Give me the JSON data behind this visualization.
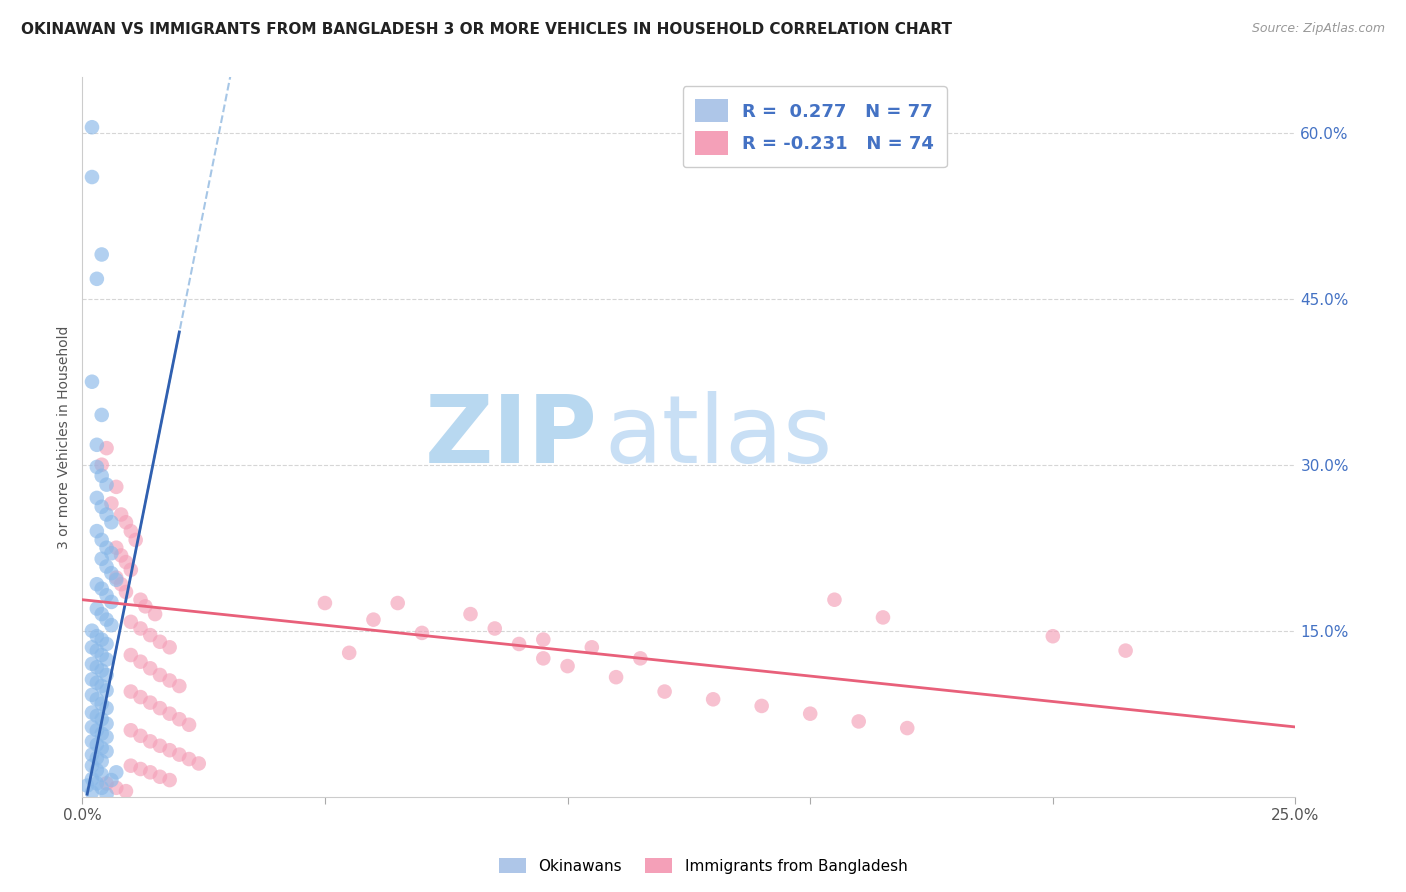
{
  "title": "OKINAWAN VS IMMIGRANTS FROM BANGLADESH 3 OR MORE VEHICLES IN HOUSEHOLD CORRELATION CHART",
  "source": "Source: ZipAtlas.com",
  "ylabel": "3 or more Vehicles in Household",
  "xlim": [
    0.0,
    0.25
  ],
  "ylim": [
    0.0,
    0.65
  ],
  "xtick_positions": [
    0.0,
    0.05,
    0.1,
    0.15,
    0.2,
    0.25
  ],
  "xtick_labels": [
    "0.0%",
    "",
    "",
    "",
    "",
    "25.0%"
  ],
  "ytick_positions": [
    0.15,
    0.3,
    0.45,
    0.6
  ],
  "ytick_labels": [
    "15.0%",
    "30.0%",
    "45.0%",
    "60.0%"
  ],
  "blue_scatter": [
    [
      0.002,
      0.605
    ],
    [
      0.002,
      0.56
    ],
    [
      0.004,
      0.49
    ],
    [
      0.003,
      0.468
    ],
    [
      0.002,
      0.375
    ],
    [
      0.004,
      0.345
    ],
    [
      0.003,
      0.318
    ],
    [
      0.003,
      0.298
    ],
    [
      0.004,
      0.29
    ],
    [
      0.005,
      0.282
    ],
    [
      0.003,
      0.27
    ],
    [
      0.004,
      0.262
    ],
    [
      0.005,
      0.255
    ],
    [
      0.006,
      0.248
    ],
    [
      0.003,
      0.24
    ],
    [
      0.004,
      0.232
    ],
    [
      0.005,
      0.225
    ],
    [
      0.006,
      0.22
    ],
    [
      0.004,
      0.215
    ],
    [
      0.005,
      0.208
    ],
    [
      0.006,
      0.202
    ],
    [
      0.007,
      0.196
    ],
    [
      0.003,
      0.192
    ],
    [
      0.004,
      0.188
    ],
    [
      0.005,
      0.182
    ],
    [
      0.006,
      0.176
    ],
    [
      0.003,
      0.17
    ],
    [
      0.004,
      0.165
    ],
    [
      0.005,
      0.16
    ],
    [
      0.006,
      0.155
    ],
    [
      0.002,
      0.15
    ],
    [
      0.003,
      0.145
    ],
    [
      0.004,
      0.142
    ],
    [
      0.005,
      0.138
    ],
    [
      0.002,
      0.135
    ],
    [
      0.003,
      0.132
    ],
    [
      0.004,
      0.128
    ],
    [
      0.005,
      0.124
    ],
    [
      0.002,
      0.12
    ],
    [
      0.003,
      0.117
    ],
    [
      0.004,
      0.114
    ],
    [
      0.005,
      0.11
    ],
    [
      0.002,
      0.106
    ],
    [
      0.003,
      0.103
    ],
    [
      0.004,
      0.1
    ],
    [
      0.005,
      0.096
    ],
    [
      0.002,
      0.092
    ],
    [
      0.003,
      0.088
    ],
    [
      0.004,
      0.084
    ],
    [
      0.005,
      0.08
    ],
    [
      0.002,
      0.076
    ],
    [
      0.003,
      0.073
    ],
    [
      0.004,
      0.07
    ],
    [
      0.005,
      0.066
    ],
    [
      0.002,
      0.063
    ],
    [
      0.003,
      0.06
    ],
    [
      0.004,
      0.057
    ],
    [
      0.005,
      0.054
    ],
    [
      0.002,
      0.05
    ],
    [
      0.003,
      0.047
    ],
    [
      0.004,
      0.044
    ],
    [
      0.005,
      0.041
    ],
    [
      0.002,
      0.038
    ],
    [
      0.003,
      0.035
    ],
    [
      0.004,
      0.032
    ],
    [
      0.002,
      0.028
    ],
    [
      0.003,
      0.024
    ],
    [
      0.004,
      0.02
    ],
    [
      0.002,
      0.016
    ],
    [
      0.003,
      0.012
    ],
    [
      0.004,
      0.008
    ],
    [
      0.002,
      0.004
    ],
    [
      0.005,
      0.002
    ],
    [
      0.001,
      0.01
    ],
    [
      0.006,
      0.015
    ],
    [
      0.007,
      0.022
    ]
  ],
  "pink_scatter": [
    [
      0.004,
      0.3
    ],
    [
      0.005,
      0.315
    ],
    [
      0.007,
      0.28
    ],
    [
      0.006,
      0.265
    ],
    [
      0.008,
      0.255
    ],
    [
      0.009,
      0.248
    ],
    [
      0.01,
      0.24
    ],
    [
      0.011,
      0.232
    ],
    [
      0.007,
      0.225
    ],
    [
      0.008,
      0.218
    ],
    [
      0.009,
      0.212
    ],
    [
      0.01,
      0.205
    ],
    [
      0.007,
      0.198
    ],
    [
      0.008,
      0.192
    ],
    [
      0.009,
      0.185
    ],
    [
      0.012,
      0.178
    ],
    [
      0.013,
      0.172
    ],
    [
      0.015,
      0.165
    ],
    [
      0.01,
      0.158
    ],
    [
      0.012,
      0.152
    ],
    [
      0.014,
      0.146
    ],
    [
      0.016,
      0.14
    ],
    [
      0.018,
      0.135
    ],
    [
      0.01,
      0.128
    ],
    [
      0.012,
      0.122
    ],
    [
      0.014,
      0.116
    ],
    [
      0.016,
      0.11
    ],
    [
      0.018,
      0.105
    ],
    [
      0.02,
      0.1
    ],
    [
      0.01,
      0.095
    ],
    [
      0.012,
      0.09
    ],
    [
      0.014,
      0.085
    ],
    [
      0.016,
      0.08
    ],
    [
      0.018,
      0.075
    ],
    [
      0.02,
      0.07
    ],
    [
      0.022,
      0.065
    ],
    [
      0.01,
      0.06
    ],
    [
      0.012,
      0.055
    ],
    [
      0.014,
      0.05
    ],
    [
      0.016,
      0.046
    ],
    [
      0.018,
      0.042
    ],
    [
      0.02,
      0.038
    ],
    [
      0.022,
      0.034
    ],
    [
      0.024,
      0.03
    ],
    [
      0.01,
      0.028
    ],
    [
      0.012,
      0.025
    ],
    [
      0.014,
      0.022
    ],
    [
      0.016,
      0.018
    ],
    [
      0.018,
      0.015
    ],
    [
      0.005,
      0.012
    ],
    [
      0.007,
      0.008
    ],
    [
      0.009,
      0.005
    ],
    [
      0.05,
      0.175
    ],
    [
      0.06,
      0.16
    ],
    [
      0.065,
      0.175
    ],
    [
      0.07,
      0.148
    ],
    [
      0.055,
      0.13
    ],
    [
      0.08,
      0.165
    ],
    [
      0.09,
      0.138
    ],
    [
      0.095,
      0.125
    ],
    [
      0.1,
      0.118
    ],
    [
      0.11,
      0.108
    ],
    [
      0.12,
      0.095
    ],
    [
      0.13,
      0.088
    ],
    [
      0.14,
      0.082
    ],
    [
      0.15,
      0.075
    ],
    [
      0.16,
      0.068
    ],
    [
      0.17,
      0.062
    ],
    [
      0.085,
      0.152
    ],
    [
      0.095,
      0.142
    ],
    [
      0.105,
      0.135
    ],
    [
      0.115,
      0.125
    ],
    [
      0.155,
      0.178
    ],
    [
      0.165,
      0.162
    ],
    [
      0.2,
      0.145
    ],
    [
      0.215,
      0.132
    ]
  ],
  "blue_line_slope": 22.0,
  "blue_line_intercept": -0.02,
  "pink_line_slope": -0.46,
  "pink_line_intercept": 0.178,
  "blue_scatter_color": "#89b8e8",
  "pink_scatter_color": "#f4a0b8",
  "blue_line_color": "#3060b0",
  "blue_dash_color": "#90b8e0",
  "pink_line_color": "#e8607a",
  "background_color": "#ffffff",
  "grid_color": "#cccccc",
  "title_color": "#333333",
  "right_axis_color": "#4472c4",
  "watermark_zip_color": "#b8d8f0",
  "watermark_atlas_color": "#c8dff5"
}
